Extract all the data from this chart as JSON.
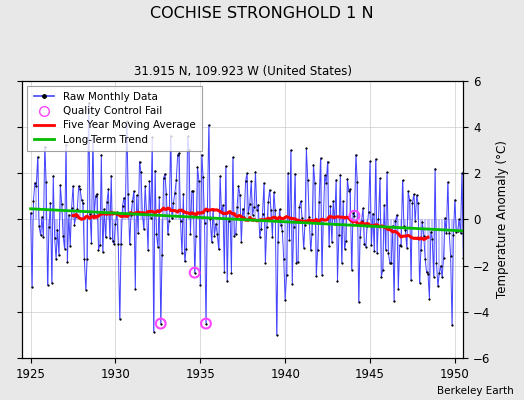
{
  "title": "COCHISE STRONGHOLD 1 N",
  "subtitle": "31.915 N, 109.923 W (United States)",
  "ylabel": "Temperature Anomaly (°C)",
  "attribution": "Berkeley Earth",
  "xlim": [
    1924.5,
    1950.5
  ],
  "ylim": [
    -6,
    6
  ],
  "yticks": [
    -6,
    -4,
    -2,
    0,
    2,
    4,
    6
  ],
  "xticks": [
    1925,
    1930,
    1935,
    1940,
    1945,
    1950
  ],
  "bg_color": "#e8e8e8",
  "plot_bg": "#ffffff",
  "raw_color": "#4444ff",
  "stem_color": "#aaaaff",
  "ma_color": "#ff0000",
  "trend_color": "#00bb00",
  "qc_color": "#ff44ff",
  "seed": 17
}
